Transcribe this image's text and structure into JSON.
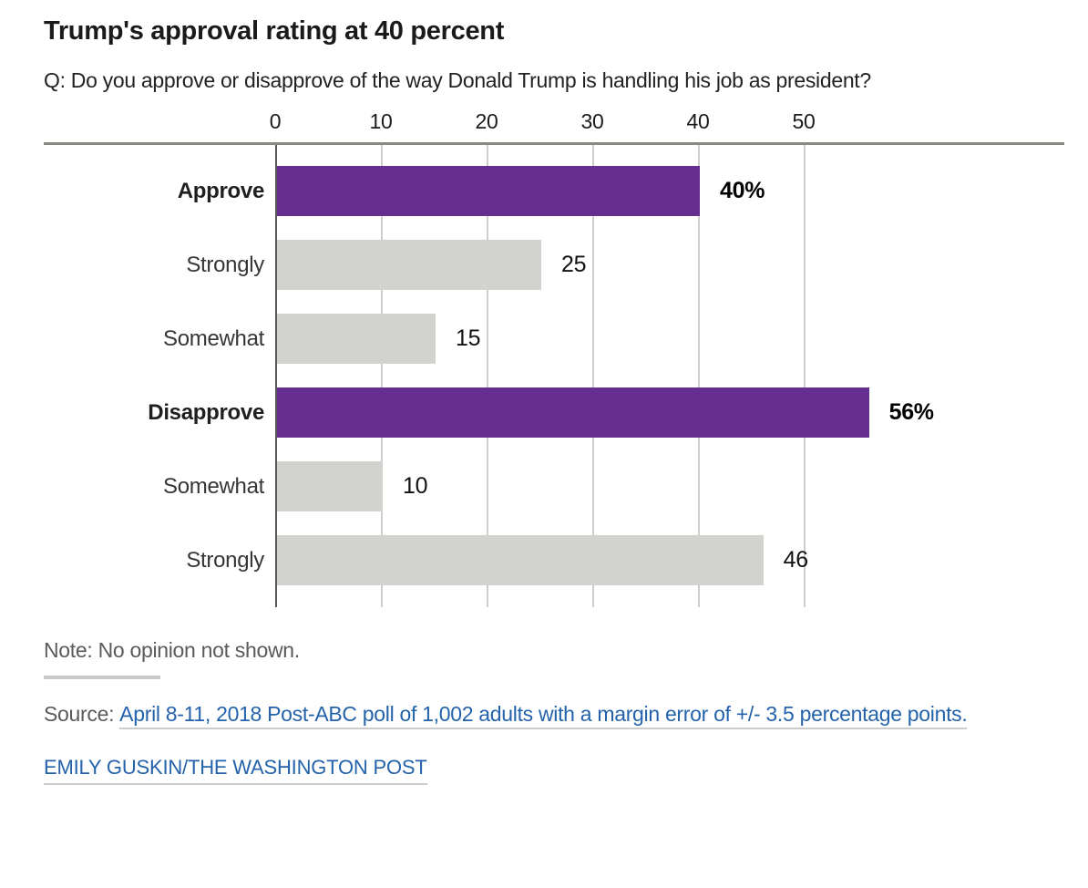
{
  "title": "Trump's approval rating at 40 percent",
  "question": "Q: Do you approve or disapprove of the way Donald Trump is handling his job as president?",
  "note": "Note: No opinion not shown.",
  "source": {
    "prefix": "Source:",
    "link": "April 8-11, 2018 Post-ABC poll of 1,002 adults with a margin error of +/- 3.5 percentage points."
  },
  "credit": "EMILY GUSKIN/THE WASHINGTON POST",
  "colors": {
    "accent_purple": "#662d91",
    "bar_gray": "#d2d2ce",
    "link_blue": "#2463ac",
    "axis_line": "#8a8a85",
    "zero_gridline": "#58585a",
    "gridline": "#cdcdcd",
    "muted_text": "#5a5a5a",
    "title_text": "#1a1a1a"
  },
  "chart_data": {
    "type": "bar",
    "orientation": "horizontal",
    "title": "Trump's approval rating at 40 percent",
    "categories": [
      "Approve",
      "Strongly",
      "Somewhat",
      "Disapprove",
      "Somewhat",
      "Strongly"
    ],
    "values": [
      40,
      25,
      15,
      56,
      10,
      46
    ],
    "value_labels": [
      "40%",
      "25",
      "15",
      "56%",
      "10",
      "46"
    ],
    "emphasized": [
      true,
      false,
      false,
      true,
      false,
      false
    ],
    "series_note": "Approve and Disapprove totals highlighted in purple; Strongly/Somewhat subgroups in gray",
    "xlabel": "",
    "ylabel": "",
    "xlim": [
      0,
      60
    ],
    "axis_ticks": [
      0,
      10,
      20,
      30,
      40,
      50
    ],
    "grid": true,
    "legend": "none",
    "unit": "percent of adults"
  }
}
